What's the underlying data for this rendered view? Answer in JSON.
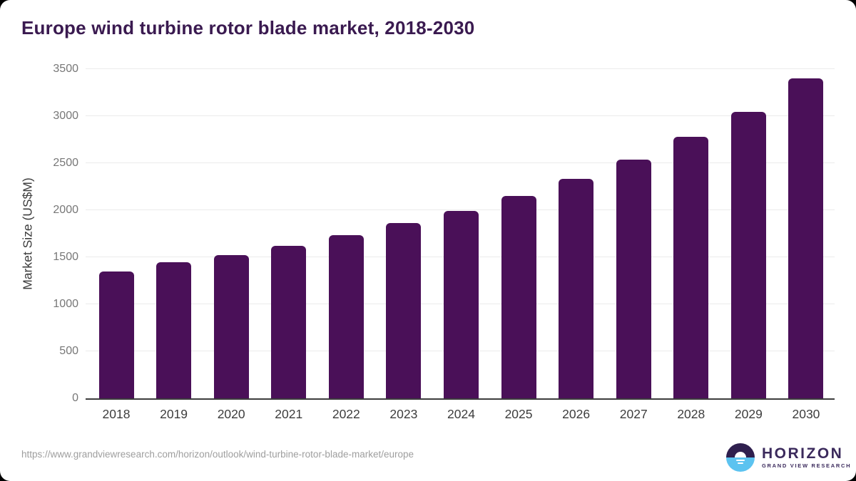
{
  "title": "Europe wind turbine rotor blade market, 2018-2030",
  "source_url": "https://www.grandviewresearch.com/horizon/outlook/wind-turbine-rotor-blade-market/europe",
  "logo": {
    "name": "HORIZON",
    "subtitle": "GRAND VIEW RESEARCH"
  },
  "colors": {
    "bar": "#4a1058",
    "title": "#3a1a50",
    "axis_line": "#3d3d3d",
    "x_labels": "#3d3d3d",
    "y_ticks": "#777777",
    "gridline": "#ebebeb",
    "url_text": "#9e9e9e",
    "logo_purple": "#2f1f4e",
    "logo_blue": "#5cc3f0",
    "logo_text": "#3b2a5c"
  },
  "chart_data": {
    "type": "bar",
    "title": "Europe wind turbine rotor blade market, 2018-2030",
    "categories": [
      "2018",
      "2019",
      "2020",
      "2021",
      "2022",
      "2023",
      "2024",
      "2025",
      "2026",
      "2027",
      "2028",
      "2029",
      "2030"
    ],
    "values": [
      1350,
      1445,
      1525,
      1620,
      1735,
      1860,
      1990,
      2150,
      2335,
      2540,
      2780,
      3045,
      3400
    ],
    "xlabel": "",
    "ylabel": "Market Size (US$M)",
    "ylim": [
      0,
      3500
    ],
    "yticks": [
      0,
      500,
      1000,
      1500,
      2000,
      2500,
      3000,
      3500
    ],
    "grid": true,
    "legend": false
  }
}
